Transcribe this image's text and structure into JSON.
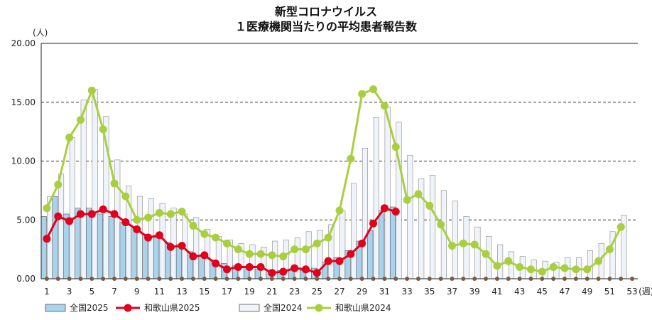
{
  "chart_data": {
    "type": "bar",
    "title_lines": [
      "新型コロナウイルス",
      "１医療機関当たりの平均患者報告数"
    ],
    "ylabel": "(人)",
    "xlabel": "(週)",
    "ylim": [
      0,
      20
    ],
    "yticks": [
      "0.00",
      "5.00",
      "10.00",
      "15.00",
      "20.00"
    ],
    "ytick_values": [
      0,
      5,
      10,
      15,
      20
    ],
    "grid": "dashed horizontal",
    "legend_position": "bottom-left",
    "weeks": [
      1,
      2,
      3,
      4,
      5,
      6,
      7,
      8,
      9,
      10,
      11,
      12,
      13,
      14,
      15,
      16,
      17,
      18,
      19,
      20,
      21,
      22,
      23,
      24,
      25,
      26,
      27,
      28,
      29,
      30,
      31,
      32,
      33,
      34,
      35,
      36,
      37,
      38,
      39,
      40,
      41,
      42,
      43,
      44,
      45,
      46,
      47,
      48,
      49,
      50,
      51,
      52,
      53
    ],
    "xtick_labels": [
      "1",
      "3",
      "5",
      "7",
      "9",
      "11",
      "13",
      "15",
      "17",
      "19",
      "21",
      "23",
      "25",
      "27",
      "29",
      "31",
      "33",
      "35",
      "37",
      "39",
      "41",
      "43",
      "45",
      "47",
      "49",
      "51",
      "53"
    ],
    "xtick_weeks": [
      1,
      3,
      5,
      7,
      9,
      11,
      13,
      15,
      17,
      19,
      21,
      23,
      25,
      27,
      29,
      31,
      33,
      35,
      37,
      39,
      41,
      43,
      45,
      47,
      49,
      51,
      53
    ],
    "series": [
      {
        "name": "全国2025",
        "kind": "bar",
        "color": "#a9d3ec",
        "values": [
          5.3,
          7.0,
          5.5,
          6.0,
          6.0,
          5.5,
          5.3,
          4.8,
          4.3,
          3.8,
          3.5,
          3.1,
          2.9,
          2.3,
          2.0,
          1.6,
          1.3,
          1.1,
          1.0,
          0.8,
          0.7,
          0.7,
          0.8,
          0.7,
          0.9,
          1.4,
          1.8,
          2.4,
          3.2,
          4.1,
          5.8,
          6.1
        ]
      },
      {
        "name": "和歌山県2025",
        "kind": "line",
        "color": "#e3001b",
        "values": [
          3.4,
          5.3,
          4.9,
          5.5,
          5.5,
          5.9,
          5.5,
          4.8,
          4.2,
          3.5,
          3.7,
          2.7,
          2.8,
          1.9,
          2.0,
          1.3,
          0.8,
          1.0,
          1.0,
          1.0,
          0.5,
          0.6,
          0.9,
          0.8,
          0.5,
          1.5,
          1.5,
          2.1,
          3.0,
          4.7,
          6.0,
          5.7
        ]
      },
      {
        "name": "全国2024",
        "kind": "bar",
        "color": "#eef4fa",
        "values": [
          7.0,
          8.9,
          12.0,
          15.2,
          16.1,
          13.8,
          10.1,
          7.9,
          7.0,
          6.8,
          6.4,
          6.0,
          5.5,
          5.2,
          4.2,
          3.6,
          3.3,
          3.0,
          2.9,
          2.7,
          3.2,
          3.3,
          3.5,
          4.0,
          4.1,
          4.6,
          5.8,
          8.1,
          11.1,
          13.7,
          14.6,
          13.3,
          10.5,
          8.5,
          8.8,
          7.5,
          6.6,
          5.3,
          4.4,
          3.6,
          2.9,
          2.3,
          1.9,
          1.6,
          1.5,
          1.4,
          1.8,
          1.8,
          2.4,
          3.0,
          4.0,
          5.4
        ]
      },
      {
        "name": "和歌山県2024",
        "kind": "line",
        "color": "#a9cf3f",
        "values": [
          6.0,
          8.0,
          12.0,
          13.5,
          16.0,
          12.7,
          8.1,
          7.0,
          5.0,
          5.2,
          5.6,
          5.5,
          5.7,
          4.5,
          3.8,
          3.5,
          3.0,
          2.5,
          2.1,
          2.1,
          2.0,
          1.9,
          2.5,
          2.5,
          3.0,
          3.5,
          5.8,
          10.2,
          15.7,
          16.1,
          14.7,
          11.2,
          6.7,
          7.2,
          6.2,
          4.6,
          2.8,
          3.0,
          2.9,
          2.1,
          1.1,
          1.5,
          1.0,
          0.8,
          0.6,
          1.0,
          0.9,
          0.8,
          0.8,
          1.5,
          2.5,
          4.4
        ]
      }
    ],
    "baseline_marker_color": "#7a5b41"
  }
}
